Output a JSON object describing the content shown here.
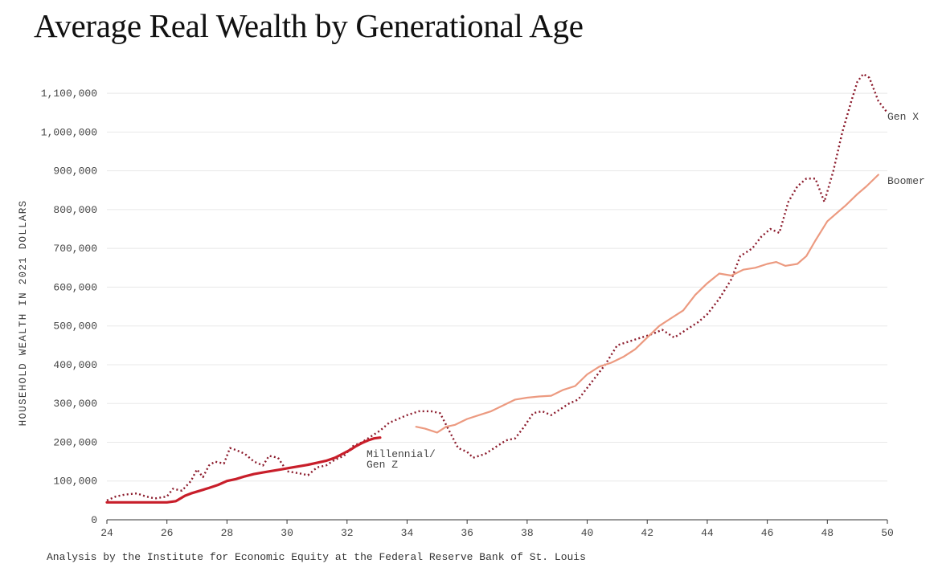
{
  "title": "Average Real Wealth by Generational Age",
  "source": "Analysis by the Institute for Economic Equity at the Federal Reserve Bank of St. Louis",
  "colors": {
    "genx": "#8b1a2b",
    "boomer": "#ec9a80",
    "millennial": "#c81e2a",
    "grid": "#e8e8e8",
    "axis": "#333333"
  },
  "chart_data": {
    "type": "line",
    "title": "Average Real Wealth by Generational Age",
    "xlabel": "",
    "ylabel": "HOUSEHOLD WEALTH IN 2021 DOLLARS",
    "xlim": [
      24,
      50
    ],
    "ylim": [
      0,
      1150000
    ],
    "xticks": [
      24,
      26,
      28,
      30,
      32,
      34,
      36,
      38,
      40,
      42,
      44,
      46,
      48,
      50
    ],
    "yticks": [
      0,
      100000,
      200000,
      300000,
      400000,
      500000,
      600000,
      700000,
      800000,
      900000,
      1000000,
      1100000
    ],
    "ytick_labels": [
      "0",
      "100,000",
      "200,000",
      "300,000",
      "400,000",
      "500,000",
      "600,000",
      "700,000",
      "800,000",
      "900,000",
      "1,000,000",
      "1,100,000"
    ],
    "grid": true,
    "series": [
      {
        "name": "Gen X",
        "style": "dotted",
        "x": [
          24,
          24.3,
          24.6,
          25,
          25.3,
          25.6,
          26,
          26.2,
          26.5,
          26.8,
          27,
          27.2,
          27.4,
          27.6,
          27.9,
          28.1,
          28.3,
          28.6,
          28.9,
          29.2,
          29.4,
          29.7,
          30,
          30.4,
          30.7,
          31,
          31.3,
          31.6,
          31.9,
          32.2,
          32.5,
          32.8,
          33.1,
          33.4,
          33.7,
          34,
          34.4,
          34.8,
          35.1,
          35.4,
          35.7,
          36,
          36.2,
          36.6,
          37,
          37.3,
          37.6,
          37.9,
          38.2,
          38.5,
          38.8,
          39.1,
          39.4,
          39.7,
          40,
          40.3,
          40.6,
          41,
          41.4,
          41.8,
          42.2,
          42.5,
          42.9,
          43.3,
          43.7,
          44,
          44.4,
          44.8,
          45.1,
          45.5,
          45.8,
          46.1,
          46.4,
          46.7,
          47,
          47.3,
          47.6,
          47.9,
          48.2,
          48.5,
          48.8,
          49,
          49.2,
          49.4,
          49.7,
          50
        ],
        "values": [
          50000,
          60000,
          65000,
          68000,
          60000,
          55000,
          60000,
          80000,
          75000,
          100000,
          130000,
          110000,
          140000,
          150000,
          145000,
          185000,
          180000,
          170000,
          150000,
          140000,
          165000,
          160000,
          125000,
          120000,
          115000,
          135000,
          140000,
          155000,
          165000,
          190000,
          200000,
          215000,
          230000,
          250000,
          260000,
          270000,
          280000,
          280000,
          275000,
          230000,
          185000,
          175000,
          160000,
          170000,
          190000,
          205000,
          210000,
          240000,
          275000,
          280000,
          270000,
          285000,
          300000,
          310000,
          340000,
          370000,
          400000,
          450000,
          460000,
          470000,
          480000,
          490000,
          470000,
          490000,
          510000,
          530000,
          570000,
          620000,
          680000,
          700000,
          730000,
          750000,
          740000,
          820000,
          860000,
          880000,
          880000,
          820000,
          900000,
          1000000,
          1080000,
          1130000,
          1150000,
          1140000,
          1080000,
          1050000
        ]
      },
      {
        "name": "Boomer",
        "style": "solid",
        "x": [
          34.3,
          34.6,
          35,
          35.3,
          35.6,
          36,
          36.4,
          36.8,
          37.2,
          37.6,
          38,
          38.4,
          38.8,
          39.2,
          39.6,
          40,
          40.4,
          40.8,
          41.2,
          41.6,
          42,
          42.4,
          42.8,
          43.2,
          43.6,
          44,
          44.4,
          44.8,
          45.2,
          45.6,
          46,
          46.3,
          46.6,
          47,
          47.3,
          47.6,
          48,
          48.3,
          48.6,
          49,
          49.3,
          49.7
        ],
        "values": [
          240000,
          235000,
          225000,
          240000,
          245000,
          260000,
          270000,
          280000,
          295000,
          310000,
          315000,
          318000,
          320000,
          335000,
          345000,
          375000,
          395000,
          405000,
          420000,
          440000,
          470000,
          500000,
          520000,
          540000,
          580000,
          610000,
          635000,
          630000,
          645000,
          650000,
          660000,
          665000,
          655000,
          660000,
          680000,
          720000,
          770000,
          790000,
          810000,
          840000,
          860000,
          890000
        ]
      },
      {
        "name": "Millennial/\nGen Z",
        "style": "solid-bold",
        "x": [
          24,
          24.4,
          24.8,
          25.2,
          25.6,
          26,
          26.3,
          26.6,
          26.8,
          27.1,
          27.4,
          27.7,
          28,
          28.3,
          28.6,
          28.9,
          29.2,
          29.5,
          29.8,
          30.1,
          30.4,
          30.7,
          31,
          31.3,
          31.6,
          31.9,
          32.1,
          32.3,
          32.5,
          32.7,
          32.9,
          33.1
        ],
        "values": [
          45000,
          45000,
          45000,
          45000,
          45000,
          45000,
          48000,
          62000,
          68000,
          75000,
          82000,
          90000,
          100000,
          105000,
          112000,
          118000,
          122000,
          126000,
          130000,
          134000,
          138000,
          142000,
          147000,
          152000,
          160000,
          172000,
          180000,
          190000,
          198000,
          205000,
          210000,
          212000
        ]
      }
    ],
    "series_labels": [
      "Gen X",
      "Boomer",
      "Millennial/",
      "Gen Z"
    ],
    "legend": "inline"
  }
}
